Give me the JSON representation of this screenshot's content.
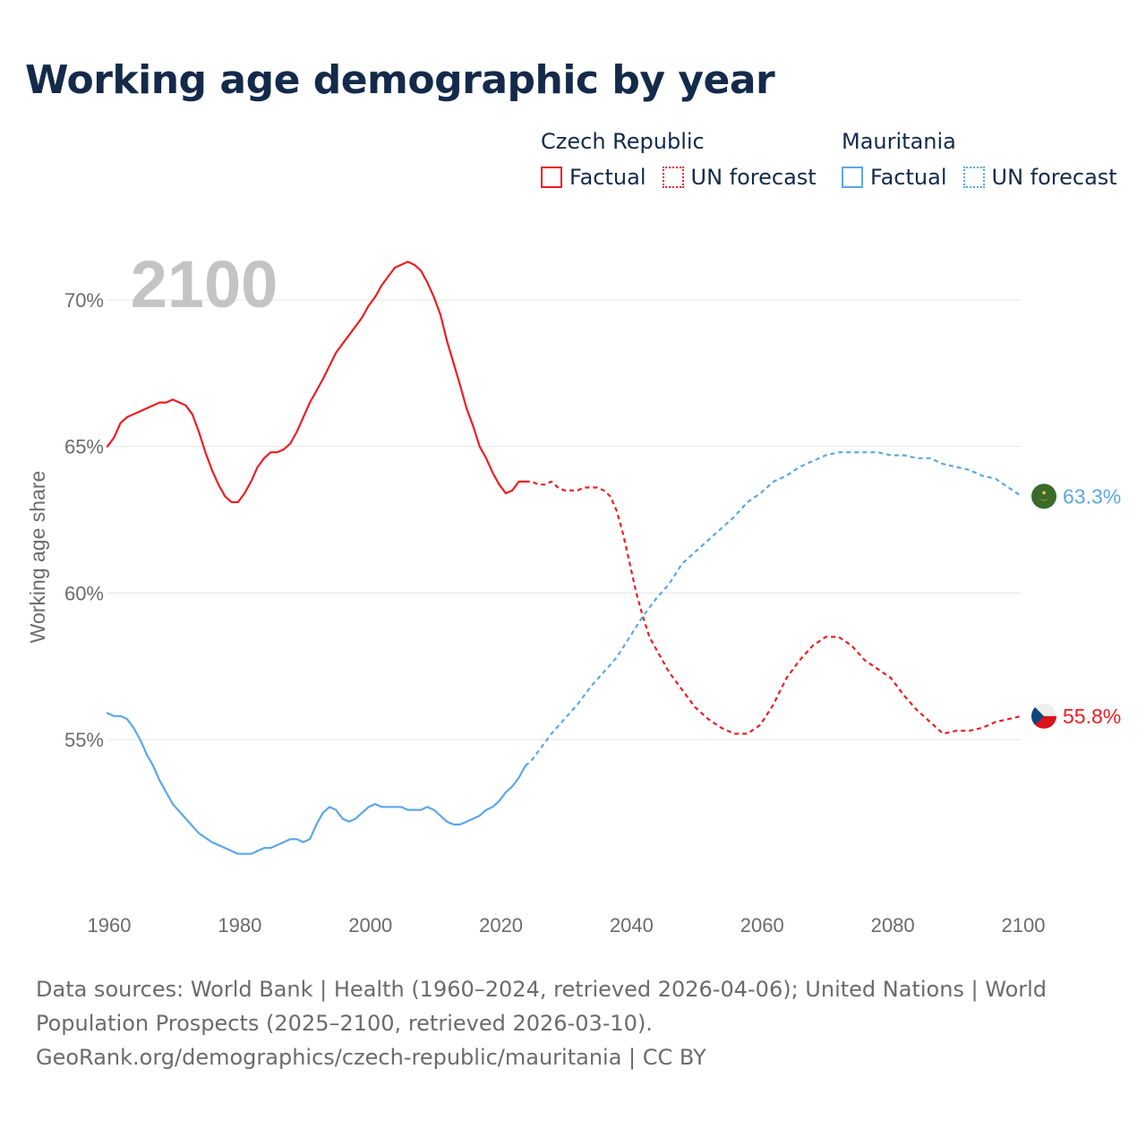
{
  "title": "Working age demographic by year",
  "legend": {
    "groups": [
      {
        "name": "Czech Republic",
        "factual": "Factual",
        "forecast": "UN forecast"
      },
      {
        "name": "Mauritania",
        "factual": "Factual",
        "forecast": "UN forecast"
      }
    ]
  },
  "colors": {
    "czech": "#ee1d23",
    "mauritania": "#5ba7e8",
    "year_watermark": "#c4c4c4",
    "grid": "#e6e6e6",
    "axis_text": "#6b6b6b"
  },
  "chart_data": {
    "type": "line",
    "title": "Working age demographic by year",
    "xlabel": "",
    "ylabel": "Working age share",
    "xlim": [
      1960,
      2100
    ],
    "ylim": [
      50,
      72
    ],
    "xticks": [
      1960,
      1980,
      2000,
      2020,
      2040,
      2060,
      2080,
      2100
    ],
    "yticks": [
      55,
      60,
      65,
      70
    ],
    "ytick_labels": [
      "55%",
      "60%",
      "65%",
      "70%"
    ],
    "xtick_labels": [
      "1960",
      "1980",
      "2000",
      "2020",
      "2040",
      "2060",
      "2080",
      "2100"
    ],
    "watermark_year": "2100",
    "grid": true,
    "series": [
      {
        "name": "Czech Republic",
        "end_label": "55.8%",
        "factual": [
          [
            1960,
            65.0
          ],
          [
            1961,
            65.3
          ],
          [
            1962,
            65.8
          ],
          [
            1963,
            66.0
          ],
          [
            1965,
            66.2
          ],
          [
            1967,
            66.4
          ],
          [
            1968,
            66.5
          ],
          [
            1969,
            66.5
          ],
          [
            1970,
            66.6
          ],
          [
            1972,
            66.4
          ],
          [
            1973,
            66.1
          ],
          [
            1974,
            65.5
          ],
          [
            1975,
            64.8
          ],
          [
            1976,
            64.2
          ],
          [
            1977,
            63.7
          ],
          [
            1978,
            63.3
          ],
          [
            1979,
            63.1
          ],
          [
            1980,
            63.1
          ],
          [
            1981,
            63.4
          ],
          [
            1982,
            63.8
          ],
          [
            1983,
            64.3
          ],
          [
            1984,
            64.6
          ],
          [
            1985,
            64.8
          ],
          [
            1986,
            64.8
          ],
          [
            1987,
            64.9
          ],
          [
            1988,
            65.1
          ],
          [
            1989,
            65.5
          ],
          [
            1990,
            66.0
          ],
          [
            1991,
            66.5
          ],
          [
            1993,
            67.3
          ],
          [
            1995,
            68.2
          ],
          [
            1997,
            68.8
          ],
          [
            1999,
            69.4
          ],
          [
            2000,
            69.8
          ],
          [
            2001,
            70.1
          ],
          [
            2002,
            70.5
          ],
          [
            2004,
            71.1
          ],
          [
            2006,
            71.3
          ],
          [
            2007,
            71.2
          ],
          [
            2008,
            71.0
          ],
          [
            2009,
            70.6
          ],
          [
            2010,
            70.1
          ],
          [
            2011,
            69.5
          ],
          [
            2012,
            68.6
          ],
          [
            2014,
            67.1
          ],
          [
            2015,
            66.3
          ],
          [
            2016,
            65.7
          ],
          [
            2017,
            65.0
          ],
          [
            2018,
            64.6
          ],
          [
            2019,
            64.1
          ],
          [
            2020,
            63.7
          ],
          [
            2021,
            63.4
          ],
          [
            2022,
            63.5
          ],
          [
            2023,
            63.8
          ],
          [
            2024,
            63.8
          ]
        ],
        "forecast": [
          [
            2024,
            63.8
          ],
          [
            2025,
            63.8
          ],
          [
            2026,
            63.7
          ],
          [
            2027,
            63.7
          ],
          [
            2028,
            63.8
          ],
          [
            2029,
            63.6
          ],
          [
            2030,
            63.5
          ],
          [
            2031,
            63.5
          ],
          [
            2032,
            63.5
          ],
          [
            2033,
            63.6
          ],
          [
            2034,
            63.6
          ],
          [
            2035,
            63.6
          ],
          [
            2036,
            63.5
          ],
          [
            2037,
            63.3
          ],
          [
            2038,
            62.8
          ],
          [
            2039,
            62.0
          ],
          [
            2040,
            61.0
          ],
          [
            2041,
            60.0
          ],
          [
            2042,
            59.2
          ],
          [
            2043,
            58.5
          ],
          [
            2044,
            58.1
          ],
          [
            2045,
            57.7
          ],
          [
            2046,
            57.3
          ],
          [
            2048,
            56.7
          ],
          [
            2050,
            56.1
          ],
          [
            2052,
            55.7
          ],
          [
            2054,
            55.4
          ],
          [
            2056,
            55.2
          ],
          [
            2058,
            55.2
          ],
          [
            2060,
            55.5
          ],
          [
            2062,
            56.2
          ],
          [
            2064,
            57.1
          ],
          [
            2066,
            57.7
          ],
          [
            2068,
            58.2
          ],
          [
            2070,
            58.5
          ],
          [
            2072,
            58.5
          ],
          [
            2074,
            58.2
          ],
          [
            2076,
            57.7
          ],
          [
            2078,
            57.4
          ],
          [
            2080,
            57.1
          ],
          [
            2082,
            56.5
          ],
          [
            2084,
            56.0
          ],
          [
            2086,
            55.6
          ],
          [
            2088,
            55.2
          ],
          [
            2090,
            55.3
          ],
          [
            2092,
            55.3
          ],
          [
            2094,
            55.4
          ],
          [
            2096,
            55.6
          ],
          [
            2098,
            55.7
          ],
          [
            2100,
            55.8
          ]
        ]
      },
      {
        "name": "Mauritania",
        "end_label": "63.3%",
        "factual": [
          [
            1960,
            55.9
          ],
          [
            1961,
            55.8
          ],
          [
            1962,
            55.8
          ],
          [
            1963,
            55.7
          ],
          [
            1964,
            55.4
          ],
          [
            1965,
            55.0
          ],
          [
            1966,
            54.5
          ],
          [
            1967,
            54.1
          ],
          [
            1968,
            53.6
          ],
          [
            1970,
            52.8
          ],
          [
            1972,
            52.3
          ],
          [
            1974,
            51.8
          ],
          [
            1976,
            51.5
          ],
          [
            1978,
            51.3
          ],
          [
            1980,
            51.1
          ],
          [
            1982,
            51.1
          ],
          [
            1984,
            51.3
          ],
          [
            1985,
            51.3
          ],
          [
            1987,
            51.5
          ],
          [
            1988,
            51.6
          ],
          [
            1989,
            51.6
          ],
          [
            1990,
            51.5
          ],
          [
            1991,
            51.6
          ],
          [
            1992,
            52.1
          ],
          [
            1993,
            52.5
          ],
          [
            1994,
            52.7
          ],
          [
            1995,
            52.6
          ],
          [
            1996,
            52.3
          ],
          [
            1997,
            52.2
          ],
          [
            1998,
            52.3
          ],
          [
            1999,
            52.5
          ],
          [
            2000,
            52.7
          ],
          [
            2001,
            52.8
          ],
          [
            2002,
            52.7
          ],
          [
            2004,
            52.7
          ],
          [
            2005,
            52.7
          ],
          [
            2006,
            52.6
          ],
          [
            2008,
            52.6
          ],
          [
            2009,
            52.7
          ],
          [
            2010,
            52.6
          ],
          [
            2011,
            52.4
          ],
          [
            2012,
            52.2
          ],
          [
            2013,
            52.1
          ],
          [
            2014,
            52.1
          ],
          [
            2015,
            52.2
          ],
          [
            2017,
            52.4
          ],
          [
            2018,
            52.6
          ],
          [
            2019,
            52.7
          ],
          [
            2020,
            52.9
          ],
          [
            2021,
            53.2
          ],
          [
            2022,
            53.4
          ],
          [
            2023,
            53.7
          ],
          [
            2024,
            54.1
          ]
        ],
        "forecast": [
          [
            2024,
            54.1
          ],
          [
            2025,
            54.3
          ],
          [
            2026,
            54.6
          ],
          [
            2028,
            55.2
          ],
          [
            2030,
            55.7
          ],
          [
            2032,
            56.2
          ],
          [
            2034,
            56.8
          ],
          [
            2036,
            57.3
          ],
          [
            2038,
            57.8
          ],
          [
            2040,
            58.5
          ],
          [
            2042,
            59.2
          ],
          [
            2044,
            59.8
          ],
          [
            2046,
            60.3
          ],
          [
            2048,
            61.0
          ],
          [
            2050,
            61.4
          ],
          [
            2052,
            61.8
          ],
          [
            2054,
            62.2
          ],
          [
            2056,
            62.6
          ],
          [
            2058,
            63.1
          ],
          [
            2060,
            63.4
          ],
          [
            2062,
            63.8
          ],
          [
            2064,
            64.0
          ],
          [
            2066,
            64.3
          ],
          [
            2068,
            64.5
          ],
          [
            2070,
            64.7
          ],
          [
            2072,
            64.8
          ],
          [
            2074,
            64.8
          ],
          [
            2076,
            64.8
          ],
          [
            2078,
            64.8
          ],
          [
            2080,
            64.7
          ],
          [
            2082,
            64.7
          ],
          [
            2084,
            64.6
          ],
          [
            2086,
            64.6
          ],
          [
            2088,
            64.4
          ],
          [
            2090,
            64.3
          ],
          [
            2092,
            64.2
          ],
          [
            2094,
            64.0
          ],
          [
            2096,
            63.9
          ],
          [
            2098,
            63.6
          ],
          [
            2100,
            63.3
          ]
        ]
      }
    ]
  },
  "footer": {
    "line1": "Data sources: World Bank | Health (1960–2024, retrieved 2026-04-06); United Nations | World",
    "line2": "Population Prospects (2025–2100, retrieved 2026-03-10).",
    "line3": "GeoRank.org/demographics/czech-republic/mauritania | CC BY"
  }
}
